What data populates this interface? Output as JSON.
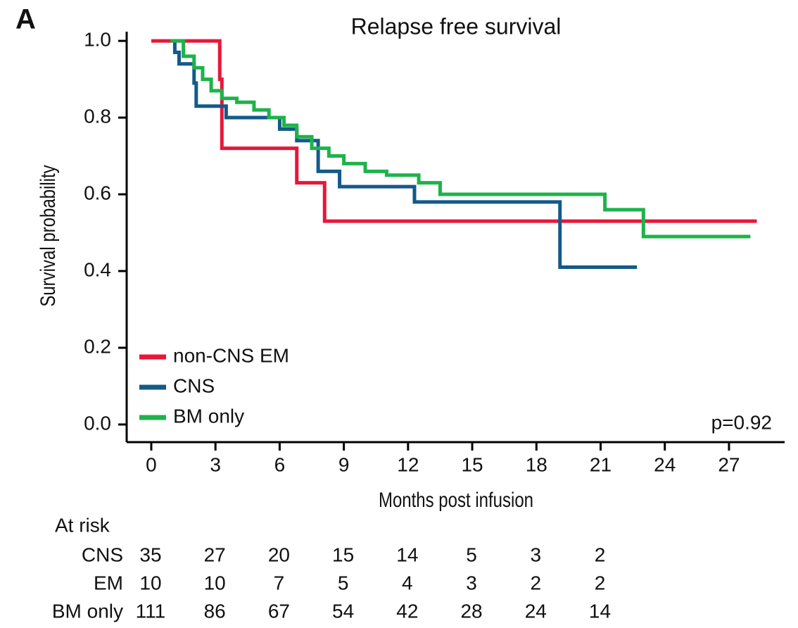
{
  "chart_data": {
    "type": "step",
    "panel_label": "A",
    "title": "Relapse free survival",
    "x_label": "Months post infusion",
    "y_label": "Survival probability",
    "xlim": [
      -1.15,
      29.6
    ],
    "ylim": [
      -0.046,
      1.024
    ],
    "xticks": [
      0,
      3,
      6,
      9,
      12,
      15,
      18,
      21,
      24,
      27
    ],
    "yticks": [
      {
        "value": 0,
        "label": "0.0"
      },
      0.2,
      0.4,
      0.6,
      0.8,
      {
        "value": 1,
        "label": "1.0"
      }
    ],
    "legend": "lower left",
    "annotation": "p=0.92",
    "series": [
      {
        "name": "non-CNS EM",
        "color": "#e8173a",
        "x": [
          0,
          3.2,
          3.3,
          6.8,
          8.1,
          28.3
        ],
        "values": [
          1.0,
          0.9,
          0.72,
          0.63,
          0.53,
          0.53
        ]
      },
      {
        "name": "CNS",
        "color": "#135a8a",
        "x": [
          1.0,
          1.1,
          1.3,
          2.0,
          2.1,
          3.5,
          6.0,
          6.8,
          7.8,
          8.8,
          12.3,
          19.1,
          22.7
        ],
        "values": [
          1.0,
          0.97,
          0.94,
          0.89,
          0.83,
          0.8,
          0.77,
          0.74,
          0.66,
          0.62,
          0.58,
          0.41,
          0.41
        ]
      },
      {
        "name": "BM only",
        "color": "#1db34a",
        "x": [
          0.9,
          1.5,
          2.0,
          2.4,
          2.8,
          3.3,
          4.0,
          4.8,
          5.5,
          6.2,
          6.8,
          7.5,
          8.3,
          9.0,
          10.0,
          11.0,
          12.5,
          13.5,
          21.2,
          23.0,
          28.0
        ],
        "values": [
          1.0,
          0.96,
          0.93,
          0.9,
          0.87,
          0.85,
          0.84,
          0.82,
          0.8,
          0.78,
          0.75,
          0.72,
          0.7,
          0.68,
          0.66,
          0.65,
          0.63,
          0.6,
          0.56,
          0.49,
          0.49
        ]
      }
    ],
    "at_risk": {
      "title": "At risk",
      "rows": [
        {
          "name": "CNS",
          "values": [
            35,
            27,
            20,
            15,
            14,
            5,
            3,
            2
          ]
        },
        {
          "name": "EM",
          "values": [
            10,
            10,
            7,
            5,
            4,
            3,
            2,
            2
          ]
        },
        {
          "name": "BM only",
          "values": [
            111,
            86,
            67,
            54,
            42,
            28,
            24,
            14
          ]
        }
      ]
    }
  }
}
